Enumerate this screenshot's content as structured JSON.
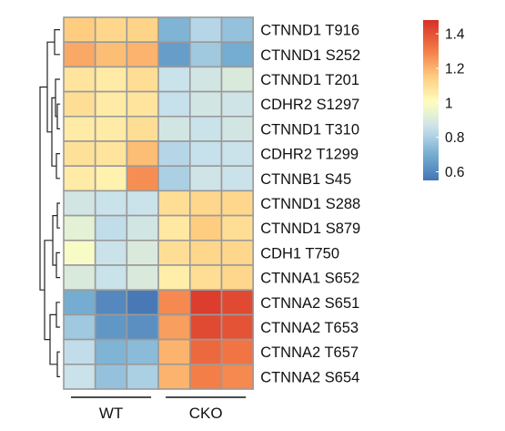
{
  "chart_data": {
    "type": "heatmap",
    "title": "",
    "xlabel": "",
    "ylabel": "",
    "groups": [
      {
        "label": "WT",
        "columns": [
          0,
          1,
          2
        ]
      },
      {
        "label": "CKO",
        "columns": [
          3,
          4,
          5
        ]
      }
    ],
    "rows": [
      "CTNND1 T916",
      "CTNND1 S252",
      "CTNND1 T201",
      "CDHR2 S1297",
      "CTNND1 T310",
      "CDHR2 T1299",
      "CTNNB1 S45",
      "CTNND1 S288",
      "CTNND1 S879",
      "CDH1 T750",
      "CTNNA1 S652",
      "CTNNA2 S651",
      "CTNNA2 T653",
      "CTNNA2 T657",
      "CTNNA2 S654"
    ],
    "values": [
      [
        1.15,
        1.12,
        1.13,
        0.72,
        0.82,
        0.76
      ],
      [
        1.22,
        1.18,
        1.2,
        0.66,
        0.78,
        0.7
      ],
      [
        1.08,
        1.06,
        1.1,
        0.86,
        0.88,
        0.9
      ],
      [
        1.1,
        1.06,
        1.08,
        0.85,
        0.88,
        0.87
      ],
      [
        1.06,
        1.06,
        1.1,
        0.88,
        0.86,
        0.88
      ],
      [
        1.09,
        1.08,
        1.18,
        0.82,
        0.85,
        0.86
      ],
      [
        1.06,
        1.04,
        1.27,
        0.8,
        0.87,
        0.86
      ],
      [
        0.88,
        0.86,
        0.86,
        1.1,
        1.12,
        1.12
      ],
      [
        0.93,
        0.84,
        0.88,
        1.07,
        1.15,
        1.1
      ],
      [
        0.98,
        0.86,
        0.9,
        1.1,
        1.12,
        1.12
      ],
      [
        0.9,
        0.86,
        0.9,
        1.05,
        1.1,
        1.12
      ],
      [
        0.7,
        0.6,
        0.56,
        1.28,
        1.45,
        1.42
      ],
      [
        0.78,
        0.64,
        0.62,
        1.24,
        1.42,
        1.4
      ],
      [
        0.84,
        0.72,
        0.74,
        1.2,
        1.35,
        1.32
      ],
      [
        0.86,
        0.76,
        0.8,
        1.2,
        1.3,
        1.28
      ]
    ],
    "colorbar": {
      "ticks": [
        1.4,
        1.2,
        1,
        0.8,
        0.6
      ],
      "tick_labels": [
        "1.4",
        "1.2",
        "1",
        "0.8",
        "0.6"
      ],
      "range": [
        0.55,
        1.48
      ],
      "colors": {
        "low": "#4575b4",
        "mid": "#ffffbf",
        "high": "#d73027"
      }
    },
    "dendrogram": "rows",
    "grid_color": "#9a9a9a"
  }
}
